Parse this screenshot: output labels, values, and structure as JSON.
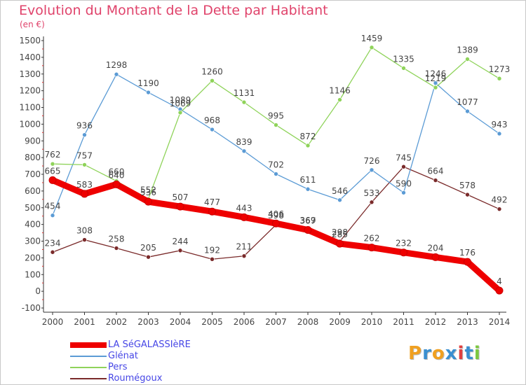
{
  "title": "Evolution du Montant de la Dette par Habitant",
  "unit": "(en €)",
  "logo": {
    "text": "Proxiti",
    "colors": [
      "#f0a020",
      "#3a8fd0",
      "#f0a020",
      "#3a8fd0",
      "#e04040",
      "#3a8fd0",
      "#7cc840"
    ]
  },
  "chart_data": {
    "type": "line",
    "x": [
      "2000",
      "2001",
      "2002",
      "2003",
      "2004",
      "2005",
      "2006",
      "2007",
      "2008",
      "2009",
      "2010",
      "2011",
      "2012",
      "2013",
      "2014"
    ],
    "ylim": [
      -100,
      1500
    ],
    "yticks": [
      -100,
      0,
      100,
      200,
      300,
      400,
      500,
      600,
      700,
      800,
      900,
      1000,
      1100,
      1200,
      1300,
      1400,
      1500
    ],
    "grid": false,
    "legend": "bottom-left",
    "series": [
      {
        "name": "LA SéGALASSIèRE",
        "color": "#ee0000",
        "values": [
          665,
          583,
          640,
          536,
          507,
          477,
          443,
          406,
          367,
          285,
          262,
          232,
          204,
          176,
          4
        ]
      },
      {
        "name": "Glénat",
        "color": "#5b9bd5",
        "values": [
          454,
          936,
          1298,
          1190,
          1089,
          968,
          839,
          702,
          611,
          546,
          726,
          590,
          1246,
          1077,
          943
        ]
      },
      {
        "name": "Pers",
        "color": "#8fd35a",
        "values": [
          762,
          757,
          660,
          552,
          1069,
          1260,
          1131,
          995,
          872,
          1146,
          1459,
          1335,
          1219,
          1389,
          1273
        ]
      },
      {
        "name": "Roumégoux",
        "color": "#7a2a2a",
        "values": [
          234,
          308,
          258,
          205,
          244,
          192,
          211,
          398,
          369,
          298,
          533,
          745,
          664,
          578,
          492
        ]
      }
    ]
  }
}
